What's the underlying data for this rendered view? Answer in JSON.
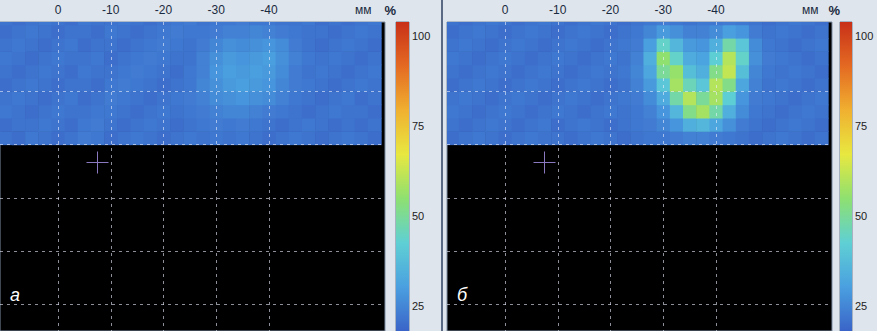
{
  "chart_data": [
    {
      "type": "heatmap",
      "label": "а",
      "x_label": "мм",
      "xlim": [
        11,
        -62
      ],
      "xticks": [
        0,
        -10,
        -20,
        -30,
        -40
      ],
      "ylim": [
        -35,
        23
      ],
      "yticks": [
        -30,
        -20,
        -10,
        0,
        10
      ],
      "grid": true,
      "tick_labels": "x",
      "colorbar": {
        "title": "%",
        "range": [
          18,
          104
        ],
        "ticks": [
          25,
          50,
          75,
          100
        ]
      },
      "x": [
        10,
        7.5,
        5,
        2.5,
        0,
        -2.5,
        -5,
        -7.5,
        -10,
        -12.5,
        -15,
        -17.5,
        -20,
        -22.5,
        -25,
        -27.5,
        -30,
        -32.5,
        -35,
        -37.5,
        -40,
        -42.5,
        -45,
        -47.5,
        -50,
        -52.5,
        -55,
        -57.5,
        -60
      ],
      "y": [
        1.25,
        3.75,
        6.25,
        8.75,
        11.25,
        13.75,
        16.25,
        18.75,
        21.25,
        23.75
      ],
      "z": [
        [
          21,
          20,
          22,
          21,
          20,
          21,
          23,
          22,
          20,
          21,
          22,
          21,
          20,
          21,
          22,
          21,
          22,
          21,
          22,
          21,
          20,
          21,
          22,
          21,
          20,
          21,
          22,
          21,
          20
        ],
        [
          20,
          21,
          21,
          22,
          21,
          20,
          22,
          23,
          21,
          20,
          21,
          22,
          21,
          20,
          21,
          22,
          23,
          22,
          23,
          22,
          21,
          20,
          21,
          22,
          21,
          20,
          21,
          20,
          21
        ],
        [
          22,
          21,
          20,
          21,
          22,
          21,
          21,
          22,
          22,
          21,
          20,
          21,
          22,
          21,
          22,
          23,
          24,
          25,
          25,
          24,
          23,
          22,
          21,
          20,
          21,
          22,
          21,
          21,
          20
        ],
        [
          21,
          22,
          21,
          20,
          21,
          22,
          20,
          21,
          23,
          22,
          21,
          20,
          21,
          22,
          23,
          24,
          26,
          27,
          28,
          27,
          26,
          24,
          22,
          21,
          20,
          21,
          22,
          20,
          21
        ],
        [
          20,
          21,
          22,
          21,
          20,
          21,
          21,
          20,
          22,
          23,
          22,
          21,
          20,
          21,
          22,
          25,
          27,
          29,
          30,
          29,
          28,
          25,
          23,
          22,
          21,
          20,
          21,
          22,
          21
        ],
        [
          21,
          20,
          21,
          22,
          21,
          20,
          22,
          21,
          21,
          22,
          23,
          22,
          21,
          20,
          22,
          24,
          28,
          30,
          29,
          30,
          29,
          26,
          23,
          21,
          22,
          21,
          20,
          21,
          22
        ],
        [
          22,
          21,
          20,
          21,
          22,
          21,
          21,
          22,
          20,
          21,
          22,
          23,
          22,
          21,
          21,
          24,
          27,
          29,
          28,
          29,
          30,
          27,
          24,
          22,
          21,
          22,
          21,
          20,
          21
        ],
        [
          21,
          22,
          21,
          20,
          21,
          22,
          20,
          21,
          21,
          20,
          21,
          22,
          23,
          22,
          21,
          23,
          25,
          27,
          26,
          27,
          28,
          26,
          23,
          21,
          20,
          21,
          22,
          21,
          20
        ],
        [
          20,
          21,
          22,
          21,
          20,
          21,
          21,
          20,
          22,
          21,
          20,
          21,
          22,
          23,
          22,
          22,
          23,
          24,
          24,
          25,
          24,
          23,
          22,
          21,
          21,
          20,
          21,
          22,
          21
        ],
        [
          21,
          20,
          21,
          22,
          21,
          20,
          22,
          21,
          21,
          22,
          21,
          20,
          21,
          22,
          23,
          21,
          22,
          22,
          23,
          22,
          22,
          21,
          21,
          22,
          20,
          21,
          20,
          21,
          22
        ]
      ]
    },
    {
      "type": "heatmap",
      "label": "б",
      "x_label": "мм",
      "xlim": [
        11,
        -62
      ],
      "xticks": [
        0,
        -10,
        -20,
        -30,
        -40
      ],
      "ylim": [
        -35,
        23
      ],
      "yticks": [
        -30,
        -20,
        -10,
        0,
        10
      ],
      "grid": true,
      "tick_labels": "x",
      "colorbar": {
        "title": "%",
        "range": [
          18,
          104
        ],
        "ticks": [
          25,
          50,
          75,
          100
        ]
      },
      "x": [
        10,
        7.5,
        5,
        2.5,
        0,
        -2.5,
        -5,
        -7.5,
        -10,
        -12.5,
        -15,
        -17.5,
        -20,
        -22.5,
        -25,
        -27.5,
        -30,
        -32.5,
        -35,
        -37.5,
        -40,
        -42.5,
        -45,
        -47.5,
        -50,
        -52.5,
        -55,
        -57.5,
        -60
      ],
      "y": [
        1.25,
        3.75,
        6.25,
        8.75,
        11.25,
        13.75,
        16.25,
        18.75,
        21.25,
        23.75
      ],
      "z": [
        [
          20,
          21,
          22,
          21,
          20,
          21,
          22,
          21,
          21,
          20,
          21,
          22,
          21,
          20,
          21,
          22,
          22,
          23,
          24,
          24,
          23,
          22,
          21,
          20,
          21,
          22,
          21,
          20,
          21
        ],
        [
          21,
          20,
          21,
          22,
          21,
          20,
          21,
          22,
          20,
          21,
          22,
          21,
          20,
          21,
          22,
          23,
          25,
          28,
          34,
          36,
          32,
          27,
          23,
          21,
          20,
          21,
          22,
          21,
          20
        ],
        [
          22,
          21,
          20,
          21,
          22,
          21,
          20,
          21,
          22,
          21,
          20,
          21,
          22,
          21,
          22,
          24,
          28,
          36,
          52,
          58,
          48,
          34,
          26,
          22,
          21,
          20,
          21,
          22,
          21
        ],
        [
          21,
          22,
          21,
          20,
          21,
          22,
          21,
          20,
          21,
          22,
          21,
          20,
          21,
          22,
          23,
          26,
          33,
          48,
          60,
          50,
          58,
          42,
          28,
          23,
          22,
          21,
          20,
          21,
          22
        ],
        [
          20,
          21,
          22,
          21,
          20,
          21,
          22,
          21,
          20,
          21,
          22,
          21,
          20,
          21,
          24,
          29,
          40,
          58,
          46,
          40,
          60,
          52,
          32,
          24,
          21,
          22,
          21,
          20,
          21
        ],
        [
          21,
          20,
          21,
          22,
          21,
          20,
          21,
          22,
          21,
          20,
          21,
          22,
          21,
          22,
          25,
          32,
          50,
          56,
          38,
          34,
          52,
          62,
          38,
          25,
          22,
          21,
          22,
          21,
          20
        ],
        [
          22,
          21,
          20,
          21,
          22,
          21,
          20,
          21,
          22,
          21,
          20,
          21,
          22,
          21,
          24,
          34,
          55,
          44,
          33,
          31,
          42,
          60,
          44,
          27,
          23,
          22,
          21,
          20,
          21
        ],
        [
          21,
          22,
          21,
          20,
          21,
          22,
          21,
          20,
          21,
          22,
          21,
          20,
          21,
          22,
          23,
          30,
          44,
          36,
          29,
          28,
          34,
          48,
          40,
          26,
          22,
          21,
          20,
          21,
          22
        ],
        [
          20,
          21,
          22,
          21,
          20,
          21,
          22,
          21,
          20,
          21,
          22,
          21,
          20,
          21,
          22,
          25,
          29,
          27,
          24,
          24,
          26,
          30,
          28,
          23,
          21,
          22,
          21,
          20,
          21
        ],
        [
          21,
          20,
          21,
          22,
          21,
          20,
          21,
          22,
          21,
          20,
          21,
          22,
          21,
          20,
          21,
          22,
          23,
          22,
          21,
          22,
          22,
          23,
          22,
          21,
          20,
          21,
          22,
          21,
          20
        ]
      ]
    }
  ]
}
